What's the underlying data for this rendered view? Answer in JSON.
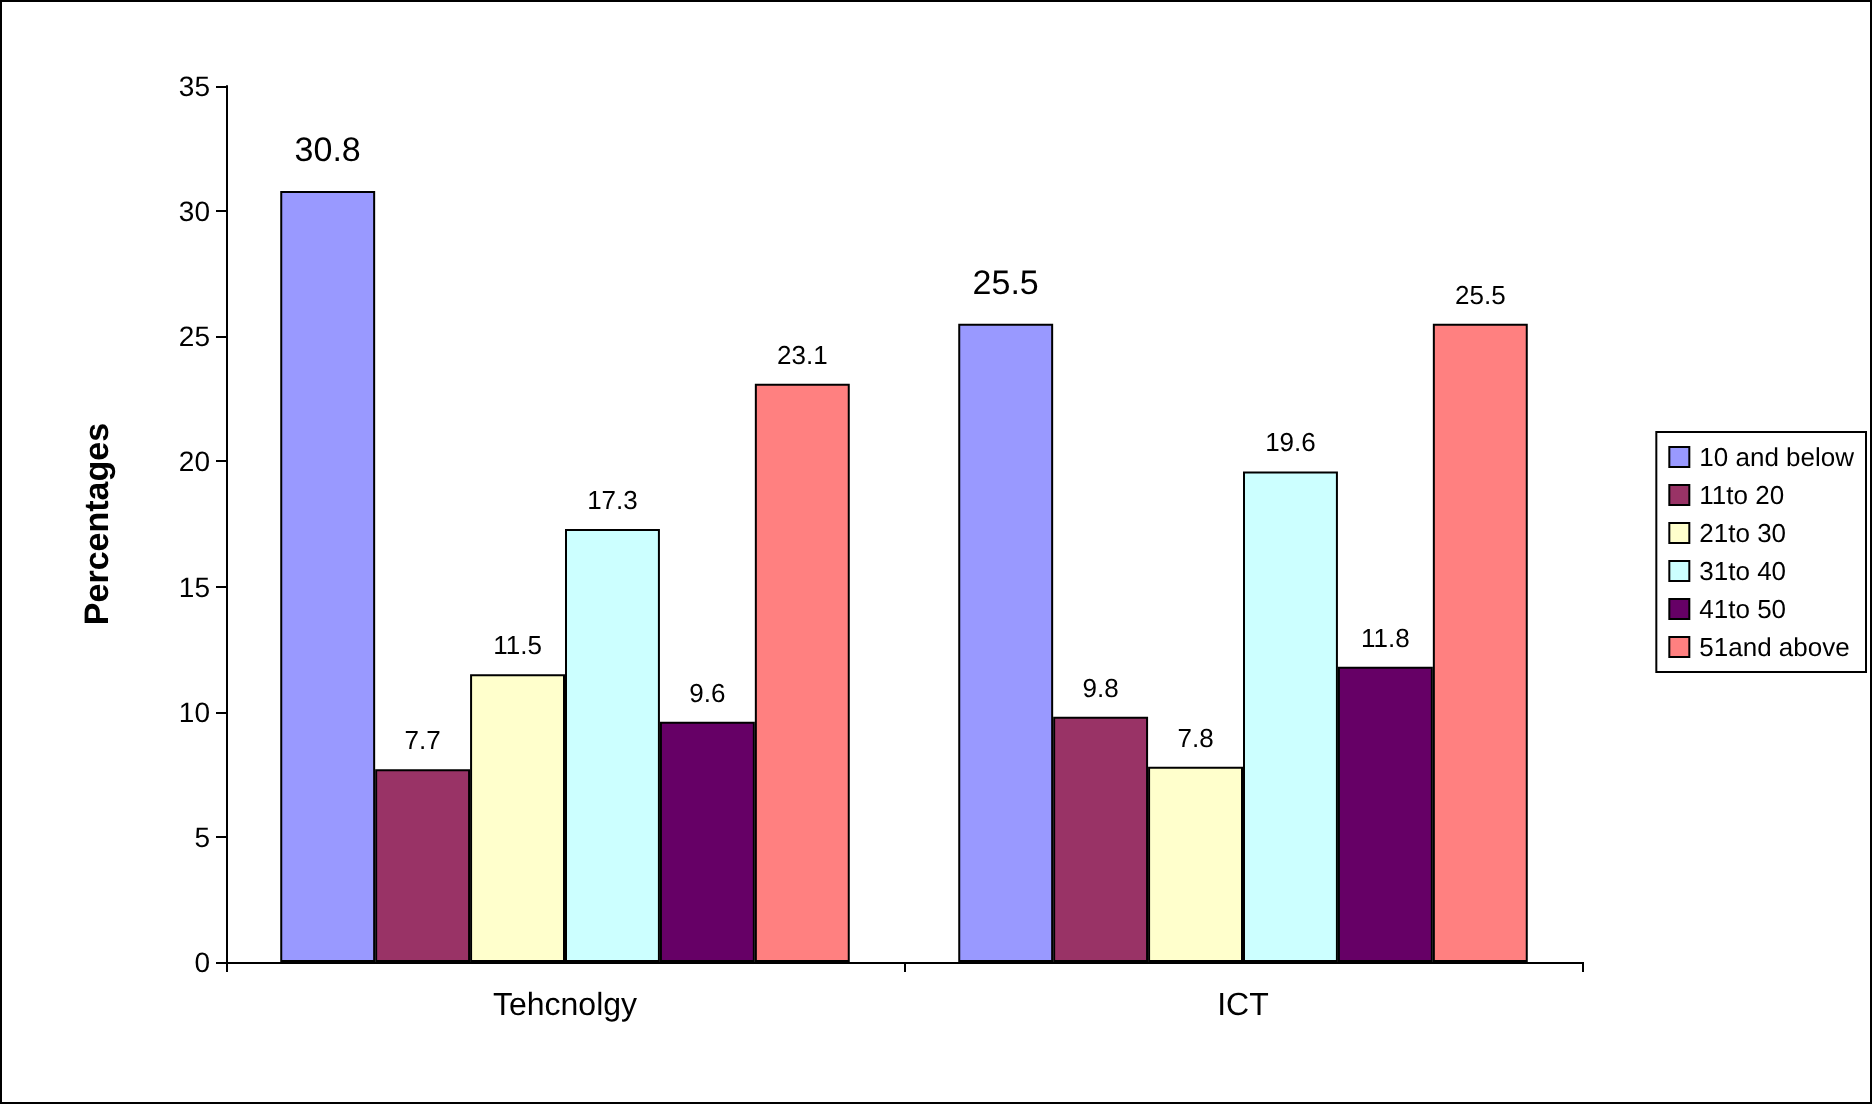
{
  "chart_data": {
    "type": "bar",
    "ylabel": "Percentages",
    "categories": [
      "Tehcnolgy",
      "ICT"
    ],
    "series": [
      {
        "name": "10 and below",
        "color": "#9999ff",
        "values": [
          30.8,
          25.5
        ]
      },
      {
        "name": "11to 20",
        "color": "#993366",
        "values": [
          7.7,
          9.8
        ]
      },
      {
        "name": "21to 30",
        "color": "#ffffcc",
        "values": [
          11.5,
          7.8
        ]
      },
      {
        "name": "31to 40",
        "color": "#ccffff",
        "values": [
          17.3,
          19.6
        ]
      },
      {
        "name": "41to 50",
        "color": "#660066",
        "values": [
          9.6,
          11.8
        ]
      },
      {
        "name": "51and above",
        "color": "#ff8080",
        "values": [
          23.1,
          25.5
        ]
      }
    ],
    "ylim": [
      0,
      35
    ],
    "yticks": [
      0,
      5,
      10,
      15,
      20,
      25,
      30,
      35
    ],
    "grid": false,
    "legend": "right",
    "data_labels": true
  }
}
